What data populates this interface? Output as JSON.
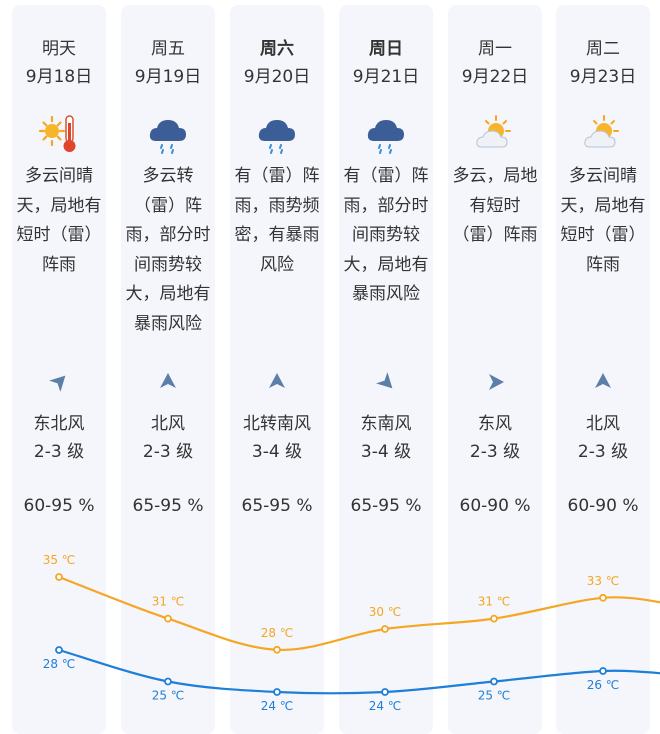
{
  "days": [
    {
      "day": "明天",
      "date": "9月18日",
      "icon": "sun-thermometer-icon",
      "desc": "多云间晴\n天，局地有\n短时（雷）\n阵雨",
      "wind_dir": "东北风",
      "wind_level": "2-3 级",
      "humidity": "60-95 %",
      "arrow_rotation": 225,
      "high": 35,
      "high_label": "35 ℃",
      "low": 28,
      "low_label": "28 ℃",
      "bold": false
    },
    {
      "day": "周五",
      "date": "9月19日",
      "icon": "rain-cloud-icon",
      "desc": "多云转\n（雷）阵\n雨，部分时\n间雨势较\n大，局地有\n暴雨风险",
      "wind_dir": "北风",
      "wind_level": "2-3 级",
      "humidity": "65-95 %",
      "arrow_rotation": 180,
      "high": 31,
      "high_label": "31 ℃",
      "low": 25,
      "low_label": "25 ℃",
      "bold": false
    },
    {
      "day": "周六",
      "date": "9月20日",
      "icon": "rain-cloud-icon",
      "desc": "有（雷）阵\n雨，雨势频\n密，有暴雨\n风险",
      "wind_dir": "北转南风",
      "wind_level": "3-4 级",
      "humidity": "65-95 %",
      "arrow_rotation": 180,
      "high": 28,
      "high_label": "28 ℃",
      "low": 24,
      "low_label": "24 ℃",
      "bold": true
    },
    {
      "day": "周日",
      "date": "9月21日",
      "icon": "rain-cloud-icon",
      "desc": "有（雷）阵\n雨，部分时\n间雨势较\n大，局地有\n暴雨风险",
      "wind_dir": "东南风",
      "wind_level": "3-4 级",
      "humidity": "65-95 %",
      "arrow_rotation": 315,
      "high": 30,
      "high_label": "30 ℃",
      "low": 24,
      "low_label": "24 ℃",
      "bold": true
    },
    {
      "day": "周一",
      "date": "9月22日",
      "icon": "sun-cloud-icon",
      "desc": "多云，局地\n有短时\n（雷）阵雨",
      "wind_dir": "东风",
      "wind_level": "2-3 级",
      "humidity": "60-90 %",
      "arrow_rotation": 270,
      "high": 31,
      "high_label": "31 ℃",
      "low": 25,
      "low_label": "25 ℃",
      "bold": false
    },
    {
      "day": "周二",
      "date": "9月23日",
      "icon": "sun-cloud-icon",
      "desc": "多云间晴\n天，局地有\n短时（雷）\n阵雨",
      "wind_dir": "北风",
      "wind_level": "2-3 级",
      "humidity": "60-90 %",
      "arrow_rotation": 180,
      "high": 33,
      "high_label": "33 ℃",
      "low": 26,
      "low_label": "26 ℃",
      "bold": false
    }
  ],
  "colors": {
    "high_line": "#f5a623",
    "low_line": "#1e7fd8",
    "column_bg": "#f4f6fb",
    "arrow": "#5b7fa8",
    "text": "#333333"
  }
}
